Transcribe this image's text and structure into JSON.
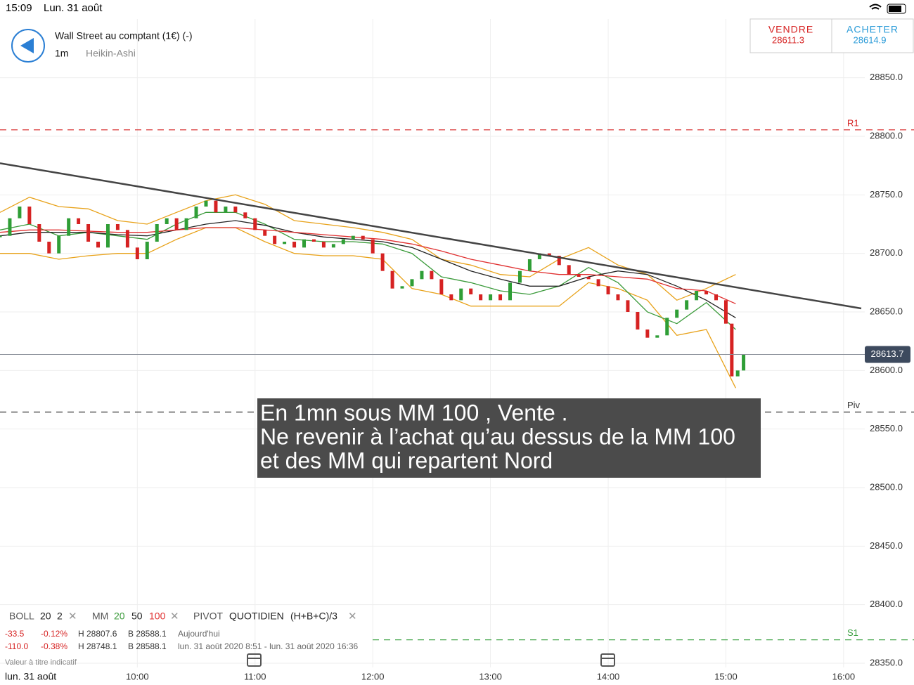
{
  "header": {
    "time": "15:09",
    "date": "Lun. 31 août",
    "instrument": "Wall Street au comptant (1€) (-)",
    "timeframe": "1m",
    "chart_style": "Heikin-Ashi"
  },
  "sell": {
    "label": "VENDRE",
    "price": 28611.3
  },
  "buy": {
    "label": "ACHETER",
    "price": 28614.9
  },
  "chart_data": {
    "type": "candlestick",
    "xlim": [
      530,
      969
    ],
    "xticks": [
      {
        "value": 600,
        "label": "10:00"
      },
      {
        "value": 660,
        "label": "11:00"
      },
      {
        "value": 720,
        "label": "12:00"
      },
      {
        "value": 780,
        "label": "13:00"
      },
      {
        "value": 840,
        "label": "14:00"
      },
      {
        "value": 900,
        "label": "15:00"
      },
      {
        "value": 960,
        "label": "16:00"
      }
    ],
    "ylim": [
      28350,
      28860
    ],
    "yticks": [
      {
        "value": 28350,
        "label": "28350.0"
      },
      {
        "value": 28400,
        "label": "28400.0"
      },
      {
        "value": 28450,
        "label": "28450.0"
      },
      {
        "value": 28500,
        "label": "28500.0"
      },
      {
        "value": 28550,
        "label": "28550.0"
      },
      {
        "value": 28600,
        "label": "28600.0"
      },
      {
        "value": 28650,
        "label": "28650.0"
      },
      {
        "value": 28700,
        "label": "28700.0"
      },
      {
        "value": 28750,
        "label": "28750.0"
      },
      {
        "value": 28800,
        "label": "28800.0"
      },
      {
        "value": 28850,
        "label": "28850.0"
      }
    ],
    "grid": true,
    "price": {
      "up_color": "#2f9e36",
      "down_color": "#d62222",
      "x": [
        530,
        535,
        540,
        545,
        550,
        555,
        560,
        565,
        570,
        575,
        580,
        585,
        590,
        595,
        600,
        605,
        610,
        615,
        620,
        625,
        630,
        635,
        640,
        645,
        650,
        655,
        660,
        665,
        670,
        675,
        680,
        685,
        690,
        695,
        700,
        705,
        710,
        715,
        720,
        725,
        730,
        735,
        740,
        745,
        750,
        755,
        760,
        765,
        770,
        775,
        780,
        785,
        790,
        795,
        800,
        805,
        810,
        815,
        820,
        825,
        830,
        835,
        840,
        845,
        850,
        855,
        860,
        865,
        870,
        875,
        880,
        885,
        890,
        895,
        900,
        903,
        906,
        909
      ],
      "values": [
        28715,
        28730,
        28740,
        28725,
        28710,
        28700,
        28715,
        28730,
        28725,
        28710,
        28705,
        28725,
        28720,
        28705,
        28695,
        28710,
        28725,
        28730,
        28720,
        28730,
        28740,
        28745,
        28735,
        28740,
        28735,
        28730,
        28720,
        28715,
        28708,
        28710,
        28705,
        28712,
        28710,
        28705,
        28708,
        28712,
        28715,
        28712,
        28700,
        28685,
        28670,
        28672,
        28678,
        28685,
        28678,
        28665,
        28660,
        28670,
        28665,
        28660,
        28665,
        28660,
        28675,
        28685,
        28695,
        28700,
        28698,
        28690,
        28682,
        28680,
        28678,
        28672,
        28665,
        28660,
        28650,
        28635,
        28628,
        28630,
        28645,
        28652,
        28660,
        28668,
        28665,
        28660,
        28640,
        28595,
        28600,
        28614
      ]
    },
    "series": [
      {
        "color": "#e8a21a",
        "x": [
          530,
          545,
          560,
          575,
          590,
          605,
          620,
          635,
          650,
          665,
          680,
          695,
          710,
          725,
          740,
          755,
          770,
          785,
          800,
          815,
          830,
          845,
          860,
          875,
          890,
          905
        ],
        "values": [
          28735,
          28748,
          28740,
          28738,
          28728,
          28725,
          28735,
          28745,
          28750,
          28742,
          28728,
          28725,
          28722,
          28718,
          28712,
          28695,
          28690,
          28682,
          28680,
          28695,
          28705,
          28690,
          28682,
          28660,
          28670,
          28682
        ]
      },
      {
        "color": "#e8a21a",
        "x": [
          530,
          545,
          560,
          575,
          590,
          605,
          620,
          635,
          650,
          665,
          680,
          695,
          710,
          725,
          740,
          755,
          770,
          785,
          800,
          815,
          830,
          845,
          860,
          875,
          890,
          905
        ],
        "values": [
          28700,
          28700,
          28695,
          28698,
          28700,
          28700,
          28712,
          28722,
          28722,
          28710,
          28700,
          28698,
          28698,
          28695,
          28670,
          28665,
          28655,
          28655,
          28655,
          28655,
          28675,
          28670,
          28660,
          28630,
          28635,
          28585
        ]
      },
      {
        "color": "#3a9a3a",
        "x": [
          530,
          545,
          560,
          575,
          590,
          605,
          620,
          635,
          650,
          665,
          680,
          695,
          710,
          725,
          740,
          755,
          770,
          785,
          800,
          815,
          830,
          845,
          860,
          875,
          890,
          905
        ],
        "values": [
          28720,
          28725,
          28715,
          28718,
          28715,
          28712,
          28725,
          28735,
          28735,
          28725,
          28712,
          28710,
          28710,
          28708,
          28700,
          28680,
          28675,
          28668,
          28665,
          28672,
          28688,
          28675,
          28650,
          28640,
          28658,
          28635
        ]
      },
      {
        "color": "#222222",
        "x": [
          530,
          545,
          560,
          575,
          590,
          605,
          620,
          635,
          650,
          665,
          680,
          695,
          710,
          725,
          740,
          755,
          770,
          785,
          800,
          815,
          830,
          845,
          860,
          875,
          890,
          905
        ],
        "values": [
          28715,
          28718,
          28718,
          28718,
          28716,
          28715,
          28720,
          28725,
          28728,
          28724,
          28718,
          28714,
          28712,
          28710,
          28705,
          28695,
          28685,
          28678,
          28672,
          28672,
          28680,
          28685,
          28682,
          28672,
          28660,
          28645
        ]
      },
      {
        "color": "#e03030",
        "x": [
          530,
          545,
          560,
          575,
          590,
          605,
          620,
          635,
          650,
          665,
          680,
          695,
          710,
          725,
          740,
          755,
          770,
          785,
          800,
          815,
          830,
          845,
          860,
          875,
          890,
          905
        ],
        "values": [
          28718,
          28720,
          28720,
          28719,
          28718,
          28718,
          28720,
          28722,
          28722,
          28720,
          28718,
          28716,
          28714,
          28712,
          28708,
          28702,
          28695,
          28690,
          28685,
          28682,
          28682,
          28680,
          28678,
          28670,
          28668,
          28657
        ]
      }
    ],
    "trendline": {
      "color": "#444444",
      "x": [
        530,
        969
      ],
      "values": [
        28777,
        28653
      ]
    },
    "levels": [
      {
        "label": "R1",
        "value": 28805.5,
        "color": "#d62222"
      },
      {
        "label": "Piv",
        "value": 28564.5,
        "color": "#333333"
      },
      {
        "label": "S1",
        "value": 28370,
        "color": "#3aa040"
      }
    ],
    "last_price": 28613.7,
    "annotation": [
      "En 1mn sous MM 100 , Vente .",
      "Ne revenir à l’achat qu’au dessus de la MM 100",
      "et des MM qui repartent Nord"
    ]
  },
  "indicators": {
    "boll": [
      "BOLL",
      "20",
      "2"
    ],
    "mm": [
      "MM",
      "20",
      "50",
      "100"
    ],
    "pivot": [
      "PIVOT",
      "QUOTIDIEN",
      "(H+B+C)/3"
    ]
  },
  "stats": [
    [
      "-33.5",
      "-0.12%",
      "H 28807.6",
      "B 28588.1",
      "Aujourd'hui"
    ],
    [
      "-110.0",
      "-0.38%",
      "H 28748.1",
      "B 28588.1",
      "lun. 31 août 2020 8:51 - lun. 31 août 2020 16:36"
    ]
  ],
  "footnote": "Valeur à titre indicatif",
  "footer_date": "lun. 31 août"
}
